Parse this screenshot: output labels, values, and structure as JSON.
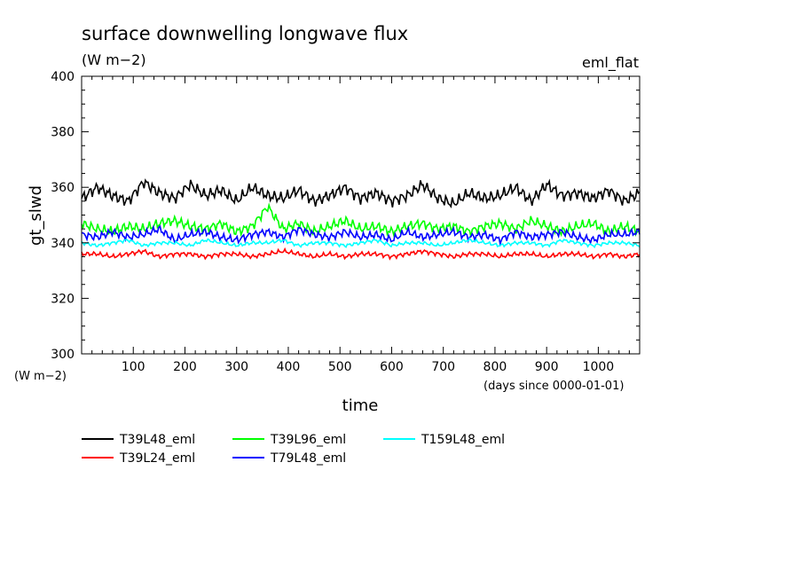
{
  "chart_data": {
    "type": "line",
    "title": "surface downwelling longwave flux",
    "units": "(W m−2)",
    "annotation": "eml_flat",
    "xlabel": "time",
    "xunits": "(days since 0000-01-01)",
    "ylabel": "gt_slwd",
    "yunits": "(W m−2)",
    "xlim": [
      0,
      1080
    ],
    "ylim": [
      300,
      400
    ],
    "xticks": [
      100,
      200,
      300,
      400,
      500,
      600,
      700,
      800,
      900,
      1000
    ],
    "xtick_labels": [
      "100",
      "200",
      "300",
      "400",
      "500",
      "600",
      "700",
      "800",
      "900",
      "1000"
    ],
    "yticks": [
      300,
      320,
      340,
      360,
      380,
      400
    ],
    "ytick_labels": [
      "300",
      "320",
      "340",
      "360",
      "380",
      "400"
    ],
    "legend_position": "bottom",
    "x": [
      0,
      30,
      60,
      90,
      120,
      150,
      180,
      210,
      240,
      270,
      300,
      330,
      360,
      390,
      420,
      450,
      480,
      510,
      540,
      570,
      600,
      630,
      660,
      690,
      720,
      750,
      780,
      810,
      840,
      870,
      900,
      930,
      960,
      990,
      1020,
      1050,
      1080
    ],
    "series": [
      {
        "name": "T39L48_eml",
        "color": "#000000",
        "values": [
          356,
          360,
          357,
          355,
          362,
          358,
          356,
          361,
          357,
          359,
          355,
          360,
          357,
          356,
          359,
          355,
          357,
          360,
          356,
          358,
          355,
          357,
          361,
          356,
          354,
          358,
          356,
          357,
          360,
          355,
          361,
          357,
          358,
          356,
          359,
          355,
          358
        ]
      },
      {
        "name": "T39L24_eml",
        "color": "#ff0000",
        "values": [
          336,
          336,
          335,
          336,
          337,
          335,
          336,
          336,
          335,
          336,
          336,
          335,
          336,
          337,
          336,
          335,
          336,
          335,
          336,
          336,
          335,
          336,
          337,
          336,
          335,
          336,
          336,
          335,
          336,
          336,
          335,
          336,
          336,
          335,
          336,
          335,
          336
        ]
      },
      {
        "name": "T39L96_eml",
        "color": "#00ff00",
        "values": [
          347,
          345,
          344,
          346,
          345,
          347,
          348,
          346,
          345,
          347,
          344,
          346,
          353,
          345,
          347,
          344,
          346,
          348,
          345,
          346,
          344,
          346,
          347,
          345,
          346,
          344,
          346,
          347,
          345,
          348,
          346,
          344,
          346,
          347,
          344,
          346,
          344
        ]
      },
      {
        "name": "T79L48_eml",
        "color": "#0000ff",
        "values": [
          343,
          342,
          344,
          342,
          343,
          345,
          341,
          343,
          344,
          342,
          341,
          343,
          344,
          342,
          345,
          343,
          342,
          344,
          342,
          343,
          341,
          344,
          342,
          343,
          344,
          342,
          343,
          341,
          344,
          342,
          343,
          344,
          342,
          341,
          343,
          343,
          344
        ]
      },
      {
        "name": "T159L48_eml",
        "color": "#00ffff",
        "values": [
          340,
          339,
          340,
          341,
          339,
          340,
          340,
          339,
          341,
          340,
          339,
          340,
          340,
          341,
          339,
          340,
          340,
          339,
          340,
          341,
          339,
          340,
          340,
          339,
          340,
          341,
          340,
          339,
          340,
          340,
          339,
          341,
          340,
          339,
          340,
          340,
          339
        ]
      }
    ]
  }
}
